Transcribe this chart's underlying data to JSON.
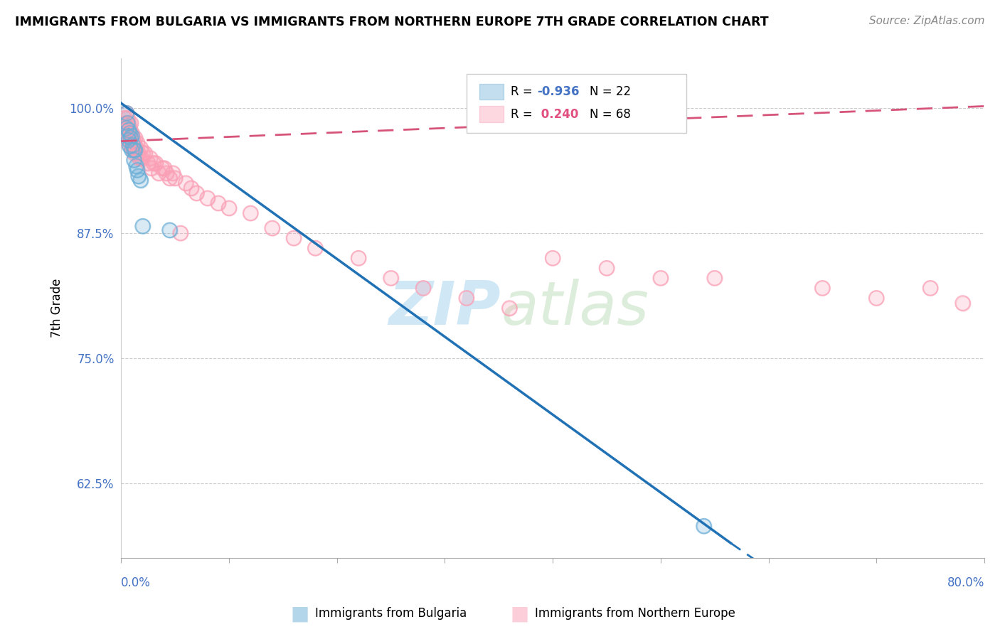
{
  "title": "IMMIGRANTS FROM BULGARIA VS IMMIGRANTS FROM NORTHERN EUROPE 7TH GRADE CORRELATION CHART",
  "source": "Source: ZipAtlas.com",
  "ylabel": "7th Grade",
  "yticks": [
    0.625,
    0.75,
    0.875,
    1.0
  ],
  "ytick_labels": [
    "62.5%",
    "75.0%",
    "87.5%",
    "100.0%"
  ],
  "xlim": [
    0.0,
    0.8
  ],
  "ylim": [
    0.55,
    1.05
  ],
  "blue_color": "#6baed6",
  "pink_color": "#fa9fb5",
  "blue_line_color": "#2171b5",
  "pink_line_color": "#d6537a",
  "watermark_zip": "ZIP",
  "watermark_atlas": "atlas",
  "blue_scatter_x": [
    0.005,
    0.005,
    0.006,
    0.006,
    0.007,
    0.007,
    0.008,
    0.008,
    0.009,
    0.01,
    0.01,
    0.011,
    0.012,
    0.012,
    0.013,
    0.014,
    0.015,
    0.016,
    0.018,
    0.02,
    0.045,
    0.54
  ],
  "blue_scatter_y": [
    0.995,
    0.98,
    0.985,
    0.972,
    0.978,
    0.968,
    0.975,
    0.962,
    0.97,
    0.972,
    0.958,
    0.963,
    0.958,
    0.948,
    0.958,
    0.942,
    0.938,
    0.932,
    0.928,
    0.882,
    0.878,
    0.582
  ],
  "pink_scatter_x": [
    0.003,
    0.004,
    0.004,
    0.005,
    0.005,
    0.005,
    0.006,
    0.006,
    0.006,
    0.007,
    0.007,
    0.007,
    0.008,
    0.008,
    0.009,
    0.009,
    0.009,
    0.01,
    0.01,
    0.011,
    0.011,
    0.012,
    0.012,
    0.013,
    0.014,
    0.015,
    0.016,
    0.017,
    0.018,
    0.019,
    0.02,
    0.022,
    0.025,
    0.027,
    0.028,
    0.03,
    0.032,
    0.035,
    0.038,
    0.04,
    0.042,
    0.045,
    0.048,
    0.05,
    0.055,
    0.06,
    0.065,
    0.07,
    0.08,
    0.09,
    0.1,
    0.12,
    0.14,
    0.16,
    0.18,
    0.22,
    0.25,
    0.28,
    0.32,
    0.36,
    0.4,
    0.45,
    0.5,
    0.55,
    0.65,
    0.7,
    0.75,
    0.78
  ],
  "pink_scatter_y": [
    0.99,
    0.985,
    0.975,
    0.995,
    0.985,
    0.975,
    0.99,
    0.98,
    0.97,
    0.985,
    0.975,
    0.965,
    0.98,
    0.97,
    0.985,
    0.975,
    0.965,
    0.975,
    0.965,
    0.97,
    0.96,
    0.965,
    0.955,
    0.97,
    0.96,
    0.965,
    0.955,
    0.95,
    0.96,
    0.95,
    0.955,
    0.955,
    0.945,
    0.95,
    0.94,
    0.945,
    0.945,
    0.935,
    0.94,
    0.94,
    0.935,
    0.93,
    0.935,
    0.93,
    0.875,
    0.925,
    0.92,
    0.915,
    0.91,
    0.905,
    0.9,
    0.895,
    0.88,
    0.87,
    0.86,
    0.85,
    0.83,
    0.82,
    0.81,
    0.8,
    0.85,
    0.84,
    0.83,
    0.83,
    0.82,
    0.81,
    0.82,
    0.805
  ]
}
